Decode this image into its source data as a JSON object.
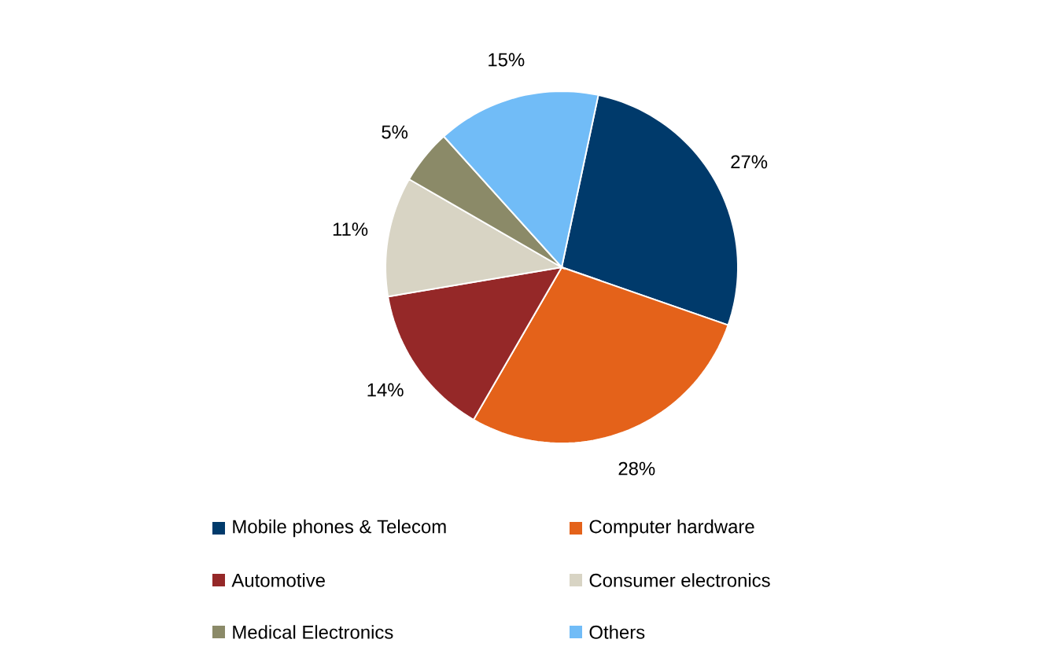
{
  "chart_data": {
    "type": "pie",
    "categories": [
      "Mobile phones & Telecom",
      "Computer hardware",
      "Automotive",
      "Consumer electronics",
      "Medical Electronics",
      "Others"
    ],
    "values": [
      27,
      28,
      14,
      11,
      5,
      15
    ],
    "colors": [
      "#003a6b",
      "#e4621a",
      "#952828",
      "#d8d4c4",
      "#8b8a68",
      "#71bcf7"
    ],
    "value_labels": [
      "27%",
      "28%",
      "14%",
      "11%",
      "5%",
      "15%"
    ],
    "legend": "bottom"
  }
}
